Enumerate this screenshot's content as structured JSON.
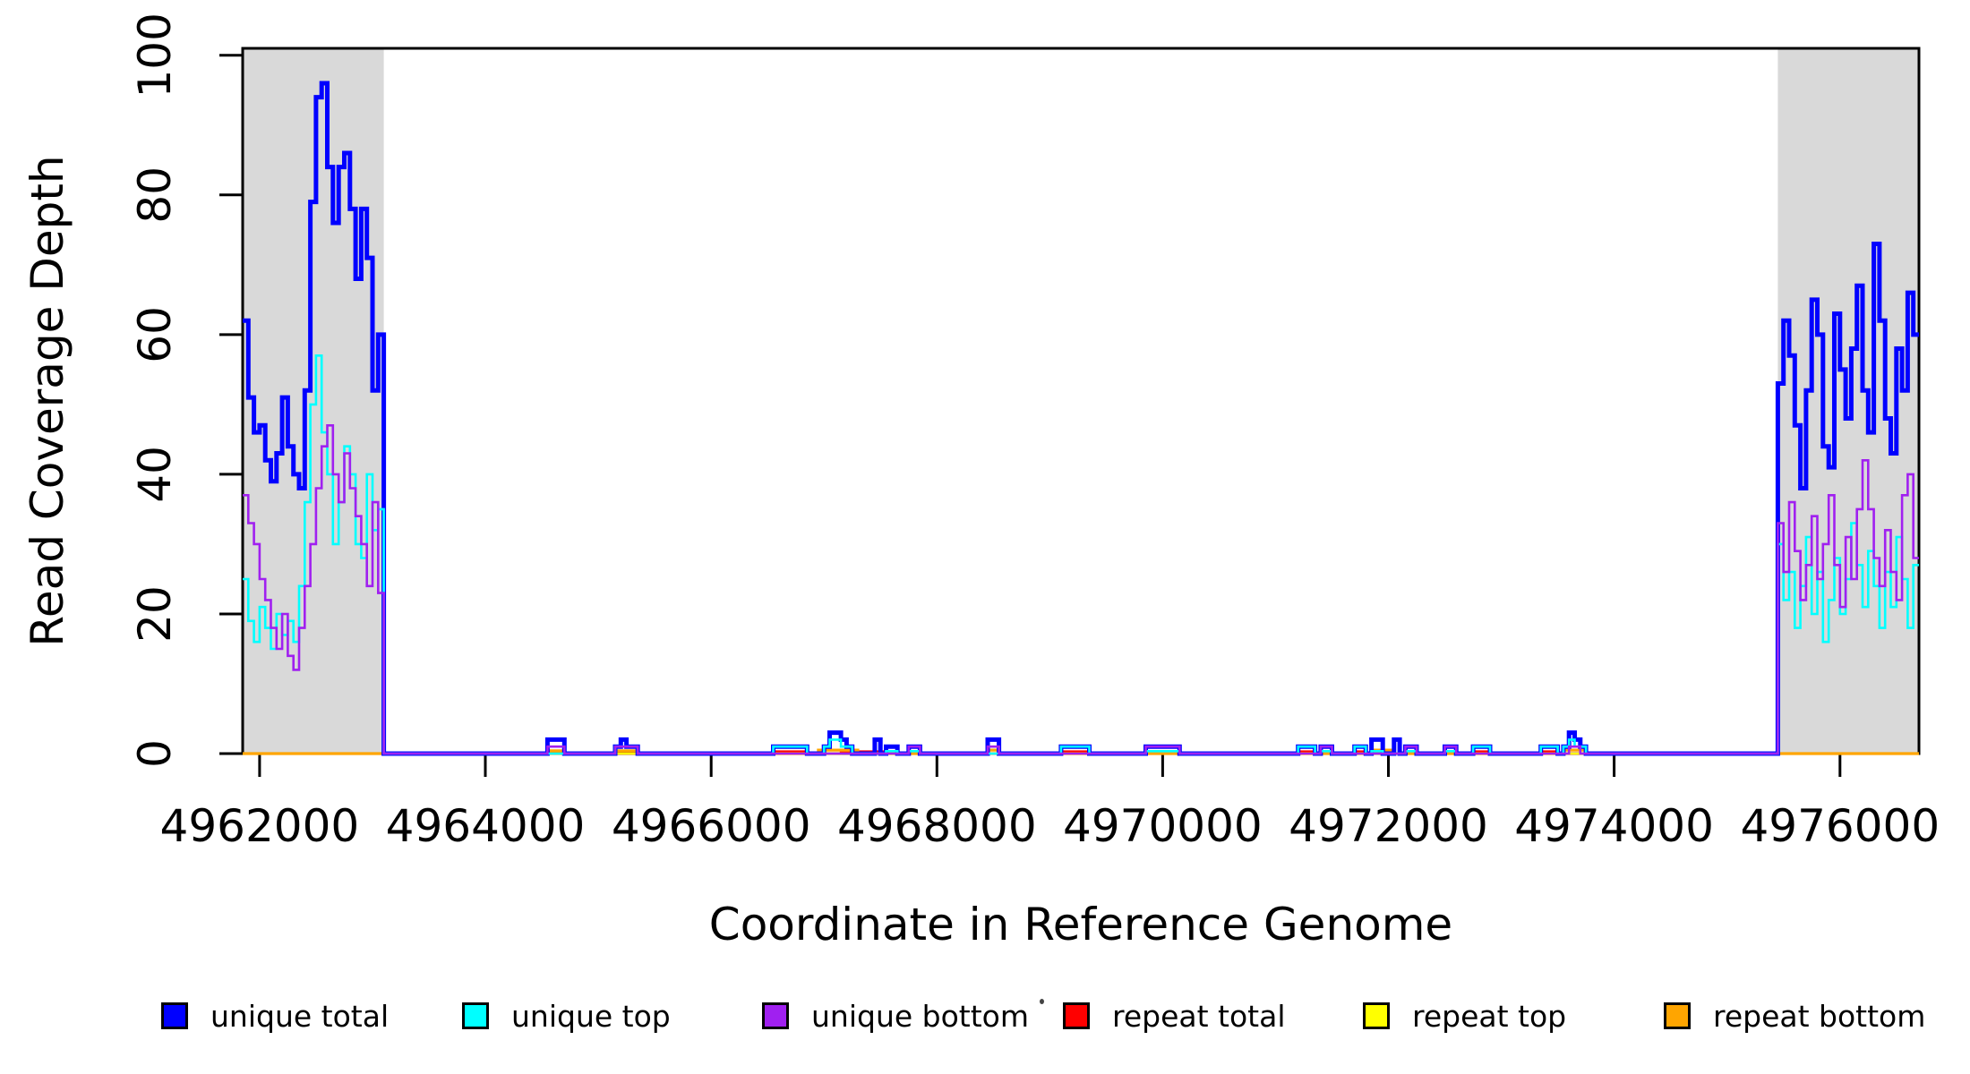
{
  "chart_data": {
    "type": "step-line",
    "title": "",
    "xlabel": "Coordinate in Reference Genome",
    "ylabel": "Read Coverage Depth",
    "xlim": [
      4961850,
      4976700
    ],
    "ylim": [
      0,
      101
    ],
    "x_ticks": [
      4962000,
      4964000,
      4966000,
      4968000,
      4970000,
      4972000,
      4974000,
      4976000
    ],
    "y_ticks": [
      0,
      20,
      40,
      60,
      80,
      100
    ],
    "grid": false,
    "window_size_bp": 50,
    "shade_color": "#D9D9D9",
    "shaded_regions": [
      [
        4961850,
        4963100
      ],
      [
        4975450,
        4976700
      ]
    ],
    "legend_position": "bottom",
    "legend": [
      {
        "label": "unique total",
        "color": "#0000FF"
      },
      {
        "label": "unique top",
        "color": "#00FFFF"
      },
      {
        "label": "unique bottom",
        "color": "#A020F0"
      },
      {
        "label": "repeat total",
        "color": "#FF0000"
      },
      {
        "label": "repeat top",
        "color": "#FFFF00"
      },
      {
        "label": "repeat bottom",
        "color": "#FFA500"
      }
    ],
    "series": [
      {
        "name": "repeat total",
        "color": "#FF0000",
        "line_width": 2.6,
        "segments": [
          {
            "start": 4966550,
            "step": 50,
            "values": [
              0.3,
              0.3,
              0.3,
              0.3,
              0.3,
              0.3
            ]
          },
          {
            "start": 4967150,
            "step": 50,
            "values": [
              0.3,
              0.3,
              0.3,
              0.3,
              0.3,
              0.3,
              0.3,
              0.3,
              0.3,
              0.3
            ]
          },
          {
            "start": 4969100,
            "step": 50,
            "values": [
              0.3,
              0.3,
              0.3,
              0.3,
              0.3
            ]
          },
          {
            "start": 4971200,
            "step": 50,
            "values": [
              0.3,
              0.3,
              0.3
            ]
          },
          {
            "start": 4971700,
            "step": 50,
            "values": [
              0.3,
              0.3
            ]
          },
          {
            "start": 4972750,
            "step": 50,
            "values": [
              0.3,
              0.3,
              0.3
            ]
          },
          {
            "start": 4973350,
            "step": 50,
            "values": [
              0.3,
              0.3,
              0.3
            ]
          }
        ]
      },
      {
        "name": "repeat top",
        "color": "#FFFF00",
        "line_width": 2.6,
        "segments": []
      },
      {
        "name": "repeat bottom",
        "color": "#FFA500",
        "line_width": 3.2,
        "segments": [
          {
            "start": 4964550,
            "step": 50,
            "values": [
              0.4,
              0.4,
              0.4
            ]
          },
          {
            "start": 4965150,
            "step": 50,
            "values": [
              0.4,
              0.4,
              0.4,
              0.4
            ]
          },
          {
            "start": 4966950,
            "step": 50,
            "values": [
              0.5,
              0.5,
              0.5,
              0.5,
              0.5,
              0.5,
              0.5
            ]
          },
          {
            "start": 4968450,
            "step": 50,
            "values": [
              0.5,
              0.5
            ]
          },
          {
            "start": 4971850,
            "step": 50,
            "values": [
              0.5,
              0.5,
              0.5,
              0.5
            ]
          },
          {
            "start": 4973550,
            "step": 50,
            "values": [
              0.5,
              0.5,
              0.5,
              0.5
            ]
          }
        ]
      },
      {
        "name": "unique total",
        "color": "#0000FF",
        "line_width": 5,
        "segments": [
          {
            "start": 4961850,
            "step": 50,
            "open_start": true,
            "values": [
              62,
              51,
              46,
              47,
              42,
              39,
              43,
              51,
              44,
              40,
              38,
              52,
              79,
              94,
              96,
              84,
              76,
              84,
              86,
              78,
              68,
              78,
              71,
              52,
              60
            ]
          },
          {
            "start": 4964550,
            "step": 50,
            "values": [
              2,
              2,
              2
            ]
          },
          {
            "start": 4965150,
            "step": 50,
            "values": [
              1,
              2,
              1,
              1
            ]
          },
          {
            "start": 4966550,
            "step": 50,
            "values": [
              1,
              1,
              1,
              1,
              1,
              1
            ]
          },
          {
            "start": 4967000,
            "step": 50,
            "values": [
              1,
              3,
              3,
              2,
              1
            ]
          },
          {
            "start": 4967450,
            "step": 50,
            "values": [
              2
            ]
          },
          {
            "start": 4967550,
            "step": 50,
            "values": [
              1,
              1
            ]
          },
          {
            "start": 4967750,
            "step": 50,
            "values": [
              1,
              1
            ]
          },
          {
            "start": 4968450,
            "step": 50,
            "values": [
              2,
              2
            ]
          },
          {
            "start": 4969100,
            "step": 50,
            "values": [
              1,
              1,
              1,
              1,
              1
            ]
          },
          {
            "start": 4969850,
            "step": 50,
            "values": [
              1,
              1,
              1,
              1,
              1,
              1
            ]
          },
          {
            "start": 4971200,
            "step": 50,
            "values": [
              1,
              1,
              1
            ]
          },
          {
            "start": 4971400,
            "step": 50,
            "values": [
              1,
              1
            ]
          },
          {
            "start": 4971700,
            "step": 50,
            "values": [
              1,
              1
            ]
          },
          {
            "start": 4971850,
            "step": 50,
            "values": [
              2,
              2
            ]
          },
          {
            "start": 4972050,
            "step": 50,
            "values": [
              2
            ]
          },
          {
            "start": 4972150,
            "step": 50,
            "values": [
              1,
              1
            ]
          },
          {
            "start": 4972500,
            "step": 50,
            "values": [
              1,
              1
            ]
          },
          {
            "start": 4972750,
            "step": 50,
            "values": [
              1,
              1,
              1
            ]
          },
          {
            "start": 4973350,
            "step": 50,
            "values": [
              1,
              1,
              1
            ]
          },
          {
            "start": 4973550,
            "step": 50,
            "values": [
              1,
              3,
              2,
              1
            ]
          },
          {
            "start": 4975450,
            "step": 50,
            "open_end": true,
            "values": [
              53,
              62,
              57,
              47,
              38,
              52,
              65,
              60,
              44,
              41,
              63,
              55,
              48,
              58,
              67,
              52,
              46,
              73,
              62,
              48,
              43,
              58,
              52,
              66,
              60
            ]
          }
        ]
      },
      {
        "name": "unique top",
        "color": "#00FFFF",
        "line_width": 2.6,
        "segments": [
          {
            "start": 4961850,
            "step": 50,
            "open_start": true,
            "values": [
              25,
              19,
              16,
              21,
              18,
              15,
              20,
              17,
              19,
              16,
              24,
              36,
              50,
              57,
              46,
              40,
              30,
              36,
              44,
              40,
              30,
              28,
              40,
              32,
              35
            ]
          },
          {
            "start": 4965150,
            "step": 50,
            "values": [
              1,
              1,
              1,
              1
            ]
          },
          {
            "start": 4966550,
            "step": 50,
            "values": [
              1,
              1,
              1,
              1,
              1,
              1
            ]
          },
          {
            "start": 4967000,
            "step": 50,
            "values": [
              1,
              2,
              2,
              1,
              1
            ]
          },
          {
            "start": 4967550,
            "step": 50,
            "values": [
              0.35,
              0.35
            ]
          },
          {
            "start": 4967750,
            "step": 50,
            "values": [
              0.35,
              0.35
            ]
          },
          {
            "start": 4969100,
            "step": 50,
            "values": [
              1,
              1,
              1,
              1,
              1
            ]
          },
          {
            "start": 4969850,
            "step": 50,
            "values": [
              0.35,
              0.35,
              0.35,
              0.35,
              0.35,
              0.35
            ]
          },
          {
            "start": 4971200,
            "step": 50,
            "values": [
              1,
              1,
              1
            ]
          },
          {
            "start": 4971400,
            "step": 50,
            "values": [
              0.35,
              0.35
            ]
          },
          {
            "start": 4971700,
            "step": 50,
            "values": [
              1,
              1
            ]
          },
          {
            "start": 4971850,
            "step": 50,
            "values": [
              0.35,
              0.35
            ]
          },
          {
            "start": 4972150,
            "step": 50,
            "values": [
              0.35,
              0.35
            ]
          },
          {
            "start": 4972500,
            "step": 50,
            "values": [
              0.35,
              0.35
            ]
          },
          {
            "start": 4972750,
            "step": 50,
            "values": [
              1,
              1,
              1
            ]
          },
          {
            "start": 4973350,
            "step": 50,
            "values": [
              1,
              1,
              1
            ]
          },
          {
            "start": 4973550,
            "step": 50,
            "values": [
              1,
              2,
              1,
              1
            ]
          },
          {
            "start": 4975450,
            "step": 50,
            "open_end": true,
            "values": [
              30,
              22,
              26,
              18,
              24,
              31,
              20,
              26,
              16,
              22,
              28,
              20,
              25,
              33,
              27,
              21,
              29,
              24,
              18,
              26,
              21,
              31,
              25,
              18,
              27
            ]
          }
        ]
      },
      {
        "name": "unique bottom",
        "color": "#A020F0",
        "line_width": 2.6,
        "segments": [
          {
            "start": 4961850,
            "step": 50,
            "open_start": true,
            "values": [
              37,
              33,
              30,
              25,
              22,
              18,
              15,
              20,
              14,
              12,
              18,
              24,
              30,
              38,
              44,
              47,
              40,
              36,
              43,
              38,
              34,
              30,
              24,
              36,
              23
            ]
          },
          {
            "start": 4964550,
            "step": 50,
            "values": [
              1,
              1,
              1
            ]
          },
          {
            "start": 4965150,
            "step": 50,
            "values": [
              1,
              1,
              1,
              1
            ]
          },
          {
            "start": 4967750,
            "step": 50,
            "values": [
              1,
              1
            ]
          },
          {
            "start": 4968450,
            "step": 50,
            "values": [
              1,
              1
            ]
          },
          {
            "start": 4969850,
            "step": 50,
            "values": [
              1,
              1,
              1,
              1,
              1,
              1
            ]
          },
          {
            "start": 4971400,
            "step": 50,
            "values": [
              1,
              1
            ]
          },
          {
            "start": 4972150,
            "step": 50,
            "values": [
              1,
              1
            ]
          },
          {
            "start": 4972500,
            "step": 50,
            "values": [
              1,
              1
            ]
          },
          {
            "start": 4973600,
            "step": 50,
            "values": [
              1,
              1
            ]
          },
          {
            "start": 4975450,
            "step": 50,
            "open_end": true,
            "values": [
              33,
              26,
              36,
              29,
              22,
              27,
              34,
              25,
              30,
              37,
              27,
              21,
              31,
              25,
              35,
              42,
              35,
              28,
              24,
              32,
              26,
              22,
              37,
              40,
              28
            ]
          }
        ]
      }
    ]
  }
}
